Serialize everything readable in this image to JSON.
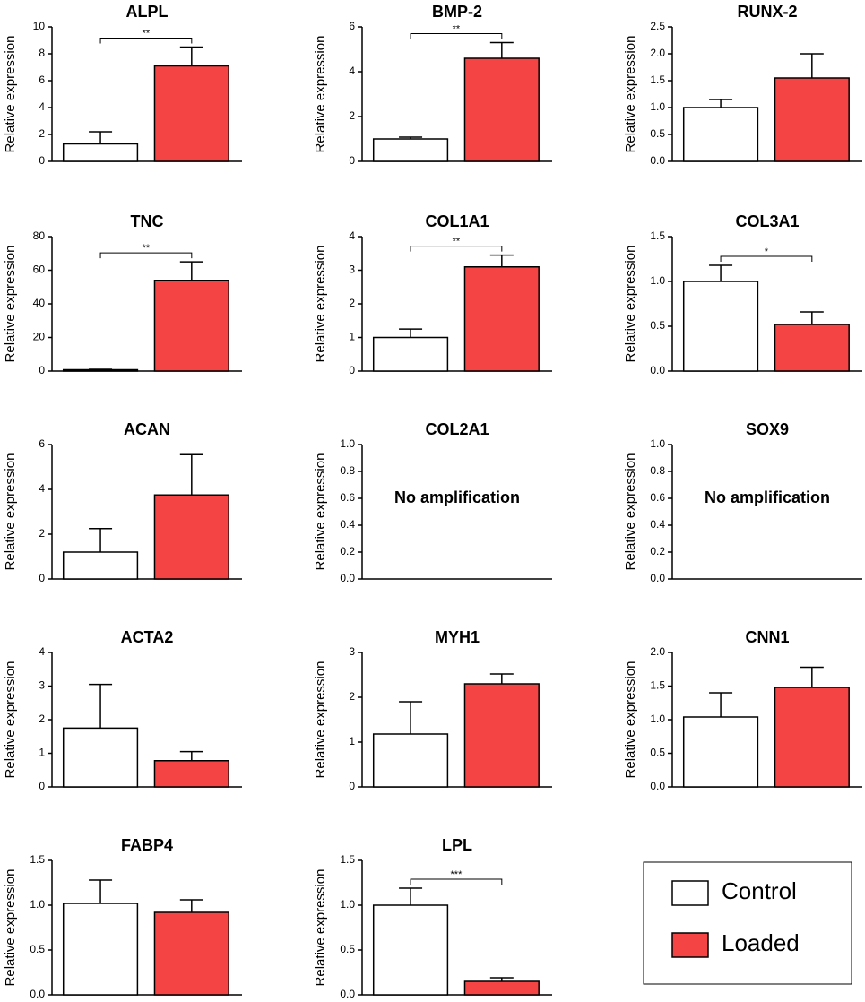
{
  "chart_data": [
    {
      "type": "bar",
      "title": "ALPL",
      "ylabel": "Relative expression",
      "values": [
        1.3,
        7.1
      ],
      "errors": [
        0.9,
        1.4
      ],
      "ylim": [
        0,
        10
      ],
      "yticks": [
        0,
        2,
        4,
        6,
        8,
        10
      ],
      "annotation": "**"
    },
    {
      "type": "bar",
      "title": "BMP-2",
      "ylabel": "Relative expression",
      "values": [
        1.0,
        4.6
      ],
      "errors": [
        0.08,
        0.7
      ],
      "ylim": [
        0,
        6
      ],
      "yticks": [
        0,
        2,
        4,
        6
      ],
      "annotation": "**"
    },
    {
      "type": "bar",
      "title": "RUNX-2",
      "ylabel": "Relative expression",
      "values": [
        1.0,
        1.55
      ],
      "errors": [
        0.15,
        0.45
      ],
      "ylim": [
        0,
        2.5
      ],
      "yticks": [
        {
          "value": 0,
          "label": "0.0"
        },
        0.5,
        {
          "value": 1,
          "label": "1.0"
        },
        1.5,
        {
          "value": 2,
          "label": "2.0"
        },
        2.5
      ]
    },
    {
      "type": "bar",
      "title": "TNC",
      "ylabel": "Relative expression",
      "values": [
        0.8,
        54
      ],
      "errors": [
        0.3,
        11
      ],
      "ylim": [
        0,
        80
      ],
      "yticks": [
        0,
        20,
        40,
        60,
        80
      ],
      "annotation": "**"
    },
    {
      "type": "bar",
      "title": "COL1A1",
      "ylabel": "Relative expression",
      "values": [
        1.0,
        3.1
      ],
      "errors": [
        0.25,
        0.35
      ],
      "ylim": [
        0,
        4
      ],
      "yticks": [
        0,
        1,
        2,
        3,
        4
      ],
      "annotation": "**"
    },
    {
      "type": "bar",
      "title": "COL3A1",
      "ylabel": "Relative expression",
      "values": [
        1.0,
        0.52
      ],
      "errors": [
        0.18,
        0.14
      ],
      "ylim": [
        0,
        1.5
      ],
      "yticks": [
        {
          "value": 0,
          "label": "0.0"
        },
        0.5,
        {
          "value": 1,
          "label": "1.0"
        },
        1.5
      ],
      "annotation": "*"
    },
    {
      "type": "bar",
      "title": "ACAN",
      "ylabel": "Relative expression",
      "values": [
        1.2,
        3.75
      ],
      "errors": [
        1.05,
        1.8
      ],
      "ylim": [
        0,
        6
      ],
      "yticks": [
        0,
        2,
        4,
        6
      ]
    },
    {
      "type": "bar",
      "title": "COL2A1",
      "ylabel": "Relative expression",
      "ylim": [
        0,
        1
      ],
      "yticks": [
        {
          "value": 0,
          "label": "0.0"
        },
        0.2,
        0.4,
        0.6,
        0.8,
        {
          "value": 1,
          "label": "1.0"
        }
      ],
      "note": "No amplification"
    },
    {
      "type": "bar",
      "title": "SOX9",
      "ylabel": "Relative expression",
      "ylim": [
        0,
        1
      ],
      "yticks": [
        {
          "value": 0,
          "label": "0.0"
        },
        0.2,
        0.4,
        0.6,
        0.8,
        {
          "value": 1,
          "label": "1.0"
        }
      ],
      "note": "No amplification"
    },
    {
      "type": "bar",
      "title": "ACTA2",
      "ylabel": "Relative expression",
      "values": [
        1.75,
        0.78
      ],
      "errors": [
        1.3,
        0.27
      ],
      "ylim": [
        0,
        4
      ],
      "yticks": [
        0,
        1,
        2,
        3,
        4
      ]
    },
    {
      "type": "bar",
      "title": "MYH1",
      "ylabel": "Relative expression",
      "values": [
        1.18,
        2.3
      ],
      "errors": [
        0.72,
        0.22
      ],
      "ylim": [
        0,
        3
      ],
      "yticks": [
        0,
        1,
        2,
        3
      ]
    },
    {
      "type": "bar",
      "title": "CNN1",
      "ylabel": "Relative expression",
      "values": [
        1.04,
        1.48
      ],
      "errors": [
        0.36,
        0.3
      ],
      "ylim": [
        0,
        2
      ],
      "yticks": [
        {
          "value": 0,
          "label": "0.0"
        },
        0.5,
        {
          "value": 1,
          "label": "1.0"
        },
        1.5,
        {
          "value": 2,
          "label": "2.0"
        }
      ]
    },
    {
      "type": "bar",
      "title": "FABP4",
      "ylabel": "Relative expression",
      "values": [
        1.02,
        0.92
      ],
      "errors": [
        0.26,
        0.14
      ],
      "ylim": [
        0,
        1.5
      ],
      "yticks": [
        {
          "value": 0,
          "label": "0.0"
        },
        0.5,
        {
          "value": 1,
          "label": "1.0"
        },
        1.5
      ]
    },
    {
      "type": "bar",
      "title": "LPL",
      "ylabel": "Relative expression",
      "values": [
        1.0,
        0.15
      ],
      "errors": [
        0.19,
        0.04
      ],
      "ylim": [
        0,
        1.5
      ],
      "yticks": [
        {
          "value": 0,
          "label": "0.0"
        },
        0.5,
        {
          "value": 1,
          "label": "1.0"
        },
        1.5
      ],
      "annotation": "***"
    }
  ],
  "legend": {
    "entries": [
      {
        "name": "Control",
        "color": "#ffffff"
      },
      {
        "name": "Loaded",
        "color": "#f44444"
      }
    ]
  }
}
